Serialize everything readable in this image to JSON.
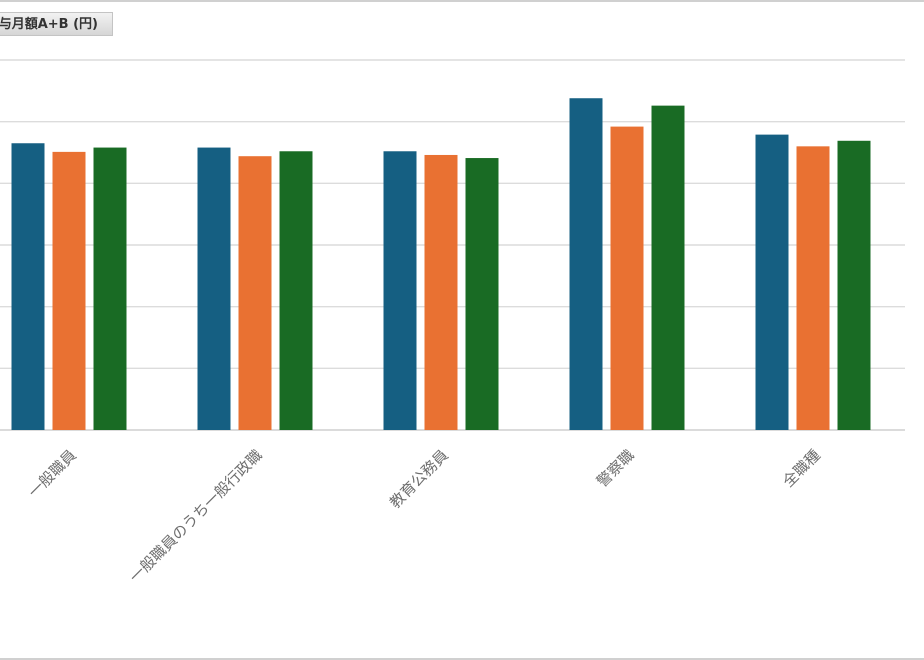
{
  "chart_data": {
    "type": "bar",
    "title": "与月額A+B (円)",
    "categories": [
      "一般職員",
      "一般職員のうち一般行政職",
      "教育公務員",
      "警察職",
      "全職種"
    ],
    "series": [
      {
        "values": [
          465,
          458,
          452,
          538,
          479
        ],
        "color": "#155f82"
      },
      {
        "values": [
          451,
          444,
          446,
          492,
          460
        ],
        "color": "#e97132"
      },
      {
        "values": [
          458,
          452,
          441,
          526,
          469
        ],
        "color": "#196b24"
      }
    ],
    "ylim": [
      0,
      600
    ],
    "gridlines": [
      100,
      200,
      300,
      400,
      500,
      600
    ],
    "grid": true,
    "legend": "none"
  }
}
